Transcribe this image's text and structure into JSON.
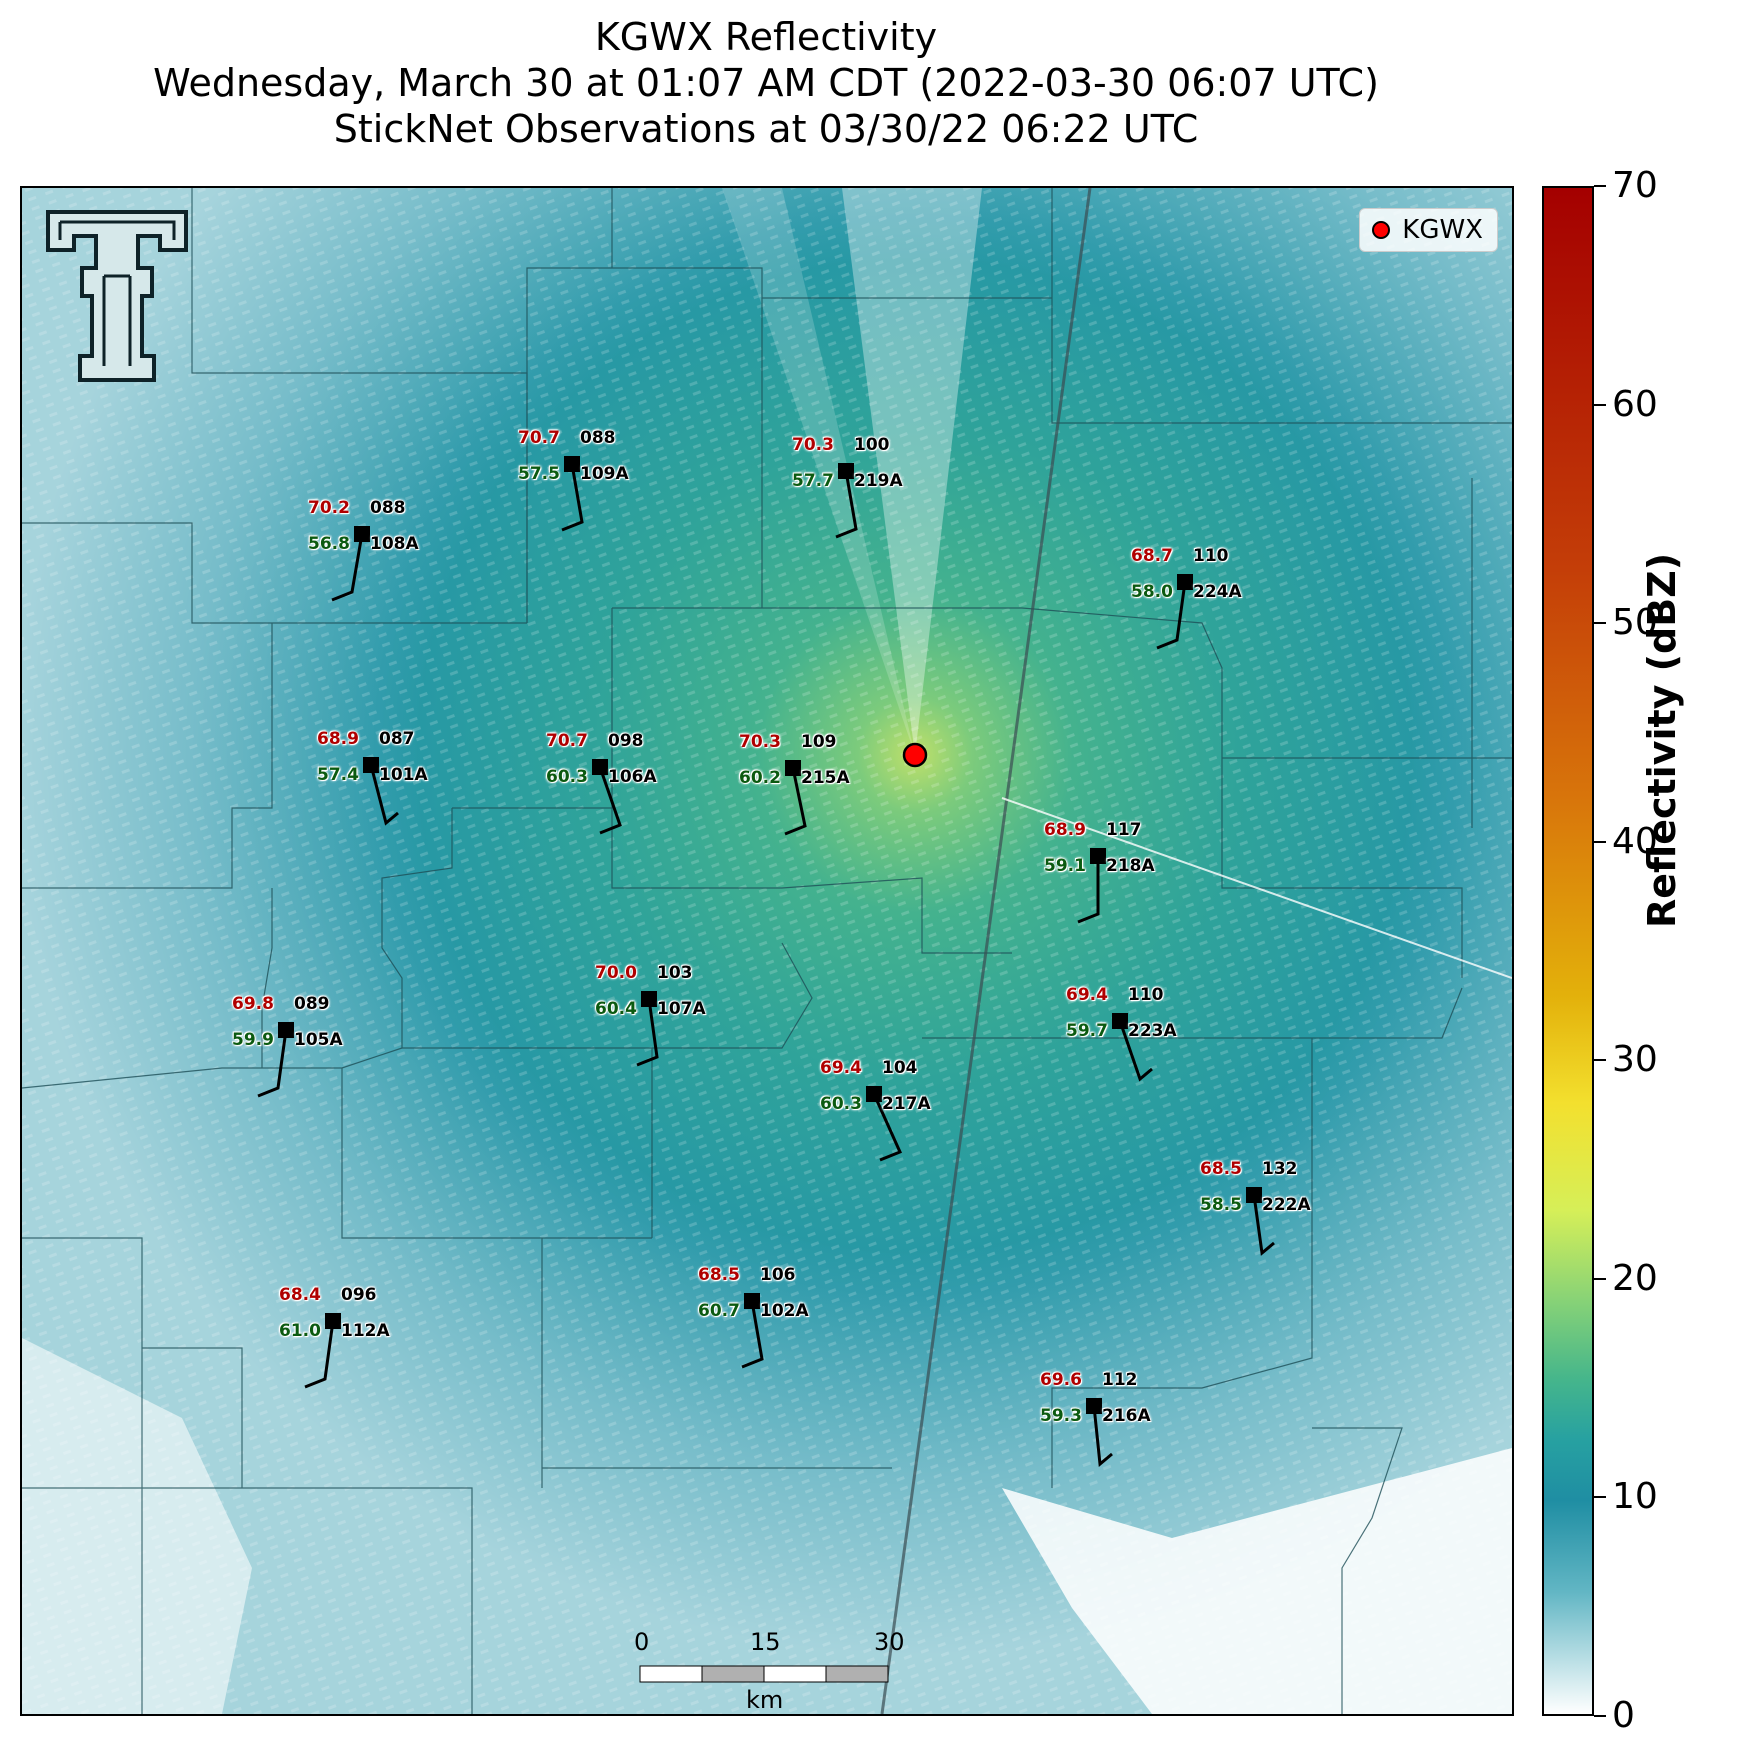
{
  "title": {
    "line1": "KGWX Reflectivity",
    "line2": "Wednesday, March 30 at 01:07 AM CDT (2022-03-30 06:07 UTC)",
    "line3": "StickNet Observations at 03/30/22 06:22 UTC"
  },
  "legend": {
    "label": "KGWX",
    "color": "#ff0000"
  },
  "colorbar": {
    "label": "Reflectivity (dBZ)",
    "ticks": [
      "0",
      "10",
      "20",
      "30",
      "40",
      "50",
      "60",
      "70"
    ],
    "range": [
      0,
      70
    ]
  },
  "scalebar": {
    "ticks": [
      "0",
      "15",
      "30"
    ],
    "unit": "km"
  },
  "stations": [
    {
      "id": "108A",
      "temp": "70.2",
      "dew": "56.8",
      "pres": "088"
    },
    {
      "id": "109A",
      "temp": "70.7",
      "dew": "57.5",
      "pres": "088"
    },
    {
      "id": "219A",
      "temp": "70.3",
      "dew": "57.7",
      "pres": "100"
    },
    {
      "id": "224A",
      "temp": "68.7",
      "dew": "58.0",
      "pres": "110"
    },
    {
      "id": "101A",
      "temp": "68.9",
      "dew": "57.4",
      "pres": "087"
    },
    {
      "id": "106A",
      "temp": "70.7",
      "dew": "60.3",
      "pres": "098"
    },
    {
      "id": "215A",
      "temp": "70.3",
      "dew": "60.2",
      "pres": "109"
    },
    {
      "id": "218A",
      "temp": "68.9",
      "dew": "59.1",
      "pres": "117"
    },
    {
      "id": "105A",
      "temp": "69.8",
      "dew": "59.9",
      "pres": "089"
    },
    {
      "id": "107A",
      "temp": "70.0",
      "dew": "60.4",
      "pres": "103"
    },
    {
      "id": "223A",
      "temp": "69.4",
      "dew": "59.7",
      "pres": "110"
    },
    {
      "id": "217A",
      "temp": "69.4",
      "dew": "60.3",
      "pres": "104"
    },
    {
      "id": "222A",
      "temp": "68.5",
      "dew": "58.5",
      "pres": "132"
    },
    {
      "id": "112A",
      "temp": "68.4",
      "dew": "61.0",
      "pres": "096"
    },
    {
      "id": "102A",
      "temp": "68.5",
      "dew": "60.7",
      "pres": "106"
    },
    {
      "id": "216A",
      "temp": "69.6",
      "dew": "59.3",
      "pres": "112"
    }
  ]
}
